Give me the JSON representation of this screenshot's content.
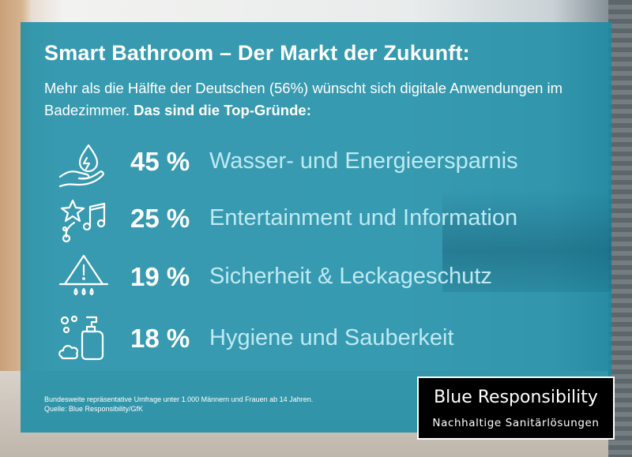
{
  "title": "Smart Bathroom – Der Markt der Zukunft:",
  "subtitle": {
    "text": "Mehr als die Hälfte der Deutschen (56%) wünscht sich digitale Anwendungen im Badezimmer.",
    "bold": "Das sind die Top-Gründe:"
  },
  "chart_data": {
    "type": "table",
    "categories": [
      "Wasser- und Energieersparnis",
      "Entertainment und Information",
      "Sicherheit & Leckageschutz",
      "Hygiene und Sauberkeit"
    ],
    "values": [
      45,
      25,
      19,
      18
    ],
    "value_labels": [
      "45 %",
      "25 %",
      "19 %",
      "18 %"
    ],
    "unit": "%",
    "icons": [
      "water-hand-icon",
      "star-music-icon",
      "warning-leak-icon",
      "soap-bubbles-icon"
    ]
  },
  "footnote": {
    "line1": "Bundesweite repräsentative Umfrage unter 1.000 Männern und Frauen ab 14 Jahren.",
    "line2": "Quelle: Blue Responsibility/GfK"
  },
  "logo": {
    "title": "Blue Responsibility",
    "subtitle": "Nachhaltige Sanitärlösungen"
  },
  "colors": {
    "panel": "#188ca5",
    "label": "#bfe9f3",
    "text": "#ffffff"
  }
}
